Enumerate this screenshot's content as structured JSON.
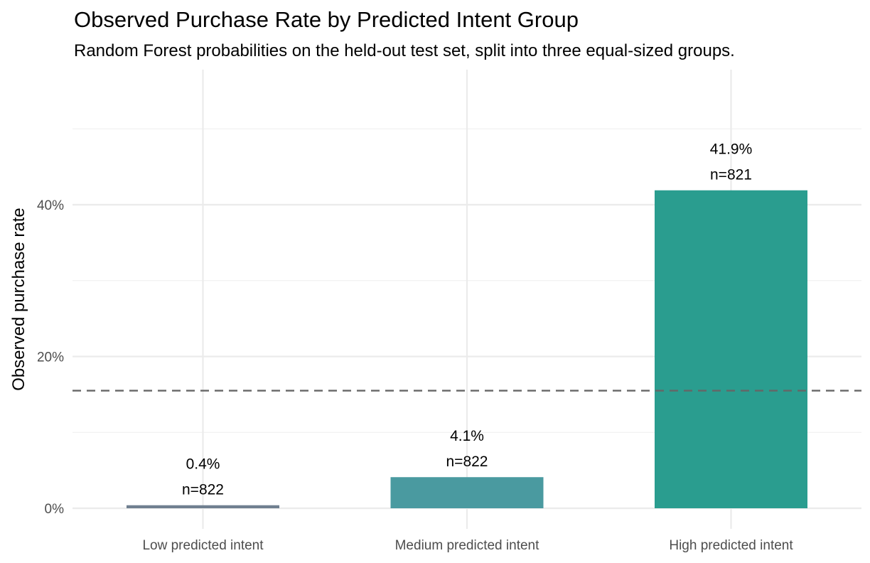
{
  "chart_data": {
    "type": "bar",
    "title": "Observed Purchase Rate by Predicted Intent Group",
    "subtitle": "Random Forest probabilities on the held-out test set, split into three equal-sized groups.",
    "xlabel": "",
    "ylabel": "Observed purchase rate",
    "categories": [
      "Low predicted intent",
      "Medium predicted intent",
      "High predicted intent"
    ],
    "values": [
      0.4,
      4.1,
      41.9
    ],
    "value_labels": [
      "0.4%",
      "4.1%",
      "41.9%"
    ],
    "n_labels": [
      "n=822",
      "n=822",
      "n=821"
    ],
    "colors": [
      "#708090",
      "#4a9aa0",
      "#2a9d8f"
    ],
    "ylim": [
      0,
      50
    ],
    "yticks": [
      0,
      20,
      40
    ],
    "ytick_labels": [
      "0%",
      "20%",
      "40%"
    ],
    "reference_line": {
      "value": 15.5,
      "style": "dashed",
      "color": "#666666"
    },
    "grid": true
  }
}
